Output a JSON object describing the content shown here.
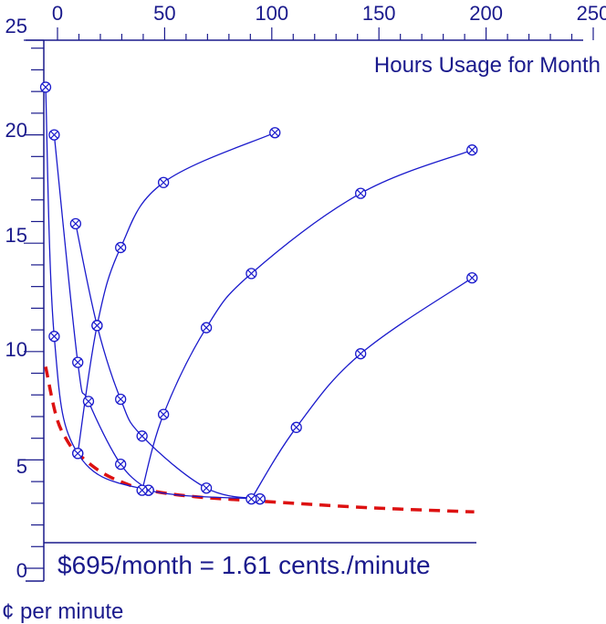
{
  "chart_data": {
    "type": "line",
    "xlabel": "Hours Usage for Month",
    "ylabel": "¢ per minute",
    "xlim": [
      0,
      250
    ],
    "ylim": [
      0,
      25
    ],
    "x_ticks": [
      "0",
      "50",
      "100",
      "150",
      "200",
      "250"
    ],
    "y_ticks": [
      "0",
      "5",
      "10",
      "15",
      "20",
      "25"
    ],
    "x_axis_position": "top",
    "grid": false,
    "annotation": "$695/month = 1.61 cents./minute",
    "colors": {
      "axis": "#1a1a8c",
      "series": "#1a1acc",
      "envelope": "#dd1111"
    },
    "series": [
      {
        "points": [
          [
            0,
            22.2
          ],
          [
            4,
            10.7
          ],
          [
            15,
            5.3
          ],
          [
            48,
            3.6
          ],
          [
            100,
            3.2
          ]
        ]
      },
      {
        "points": [
          [
            4,
            20.0
          ],
          [
            15,
            9.5
          ],
          [
            20,
            7.7
          ],
          [
            35,
            4.8
          ],
          [
            48,
            3.6
          ]
        ]
      },
      {
        "points": [
          [
            14,
            15.9
          ],
          [
            24,
            11.2
          ],
          [
            35,
            7.8
          ],
          [
            45,
            6.1
          ],
          [
            75,
            3.7
          ],
          [
            100,
            3.2
          ]
        ]
      },
      {
        "points": [
          [
            15,
            5.3
          ],
          [
            24,
            11.2
          ],
          [
            35,
            14.8
          ],
          [
            55,
            17.8
          ],
          [
            107,
            20.1
          ]
        ]
      },
      {
        "points": [
          [
            45,
            3.6
          ],
          [
            55,
            7.1
          ],
          [
            75,
            11.1
          ],
          [
            96,
            13.6
          ],
          [
            147,
            17.3
          ],
          [
            199,
            19.3
          ]
        ]
      },
      {
        "points": [
          [
            96,
            3.2
          ],
          [
            117,
            6.5
          ],
          [
            147,
            9.9
          ],
          [
            199,
            13.4
          ]
        ]
      }
    ],
    "envelope": {
      "style": "dashed",
      "points": [
        [
          0,
          9.3
        ],
        [
          5,
          7.0
        ],
        [
          10,
          5.9
        ],
        [
          15,
          5.3
        ],
        [
          25,
          4.5
        ],
        [
          35,
          4.0
        ],
        [
          48,
          3.6
        ],
        [
          70,
          3.3
        ],
        [
          100,
          3.1
        ],
        [
          150,
          2.8
        ],
        [
          200,
          2.6
        ]
      ]
    }
  }
}
